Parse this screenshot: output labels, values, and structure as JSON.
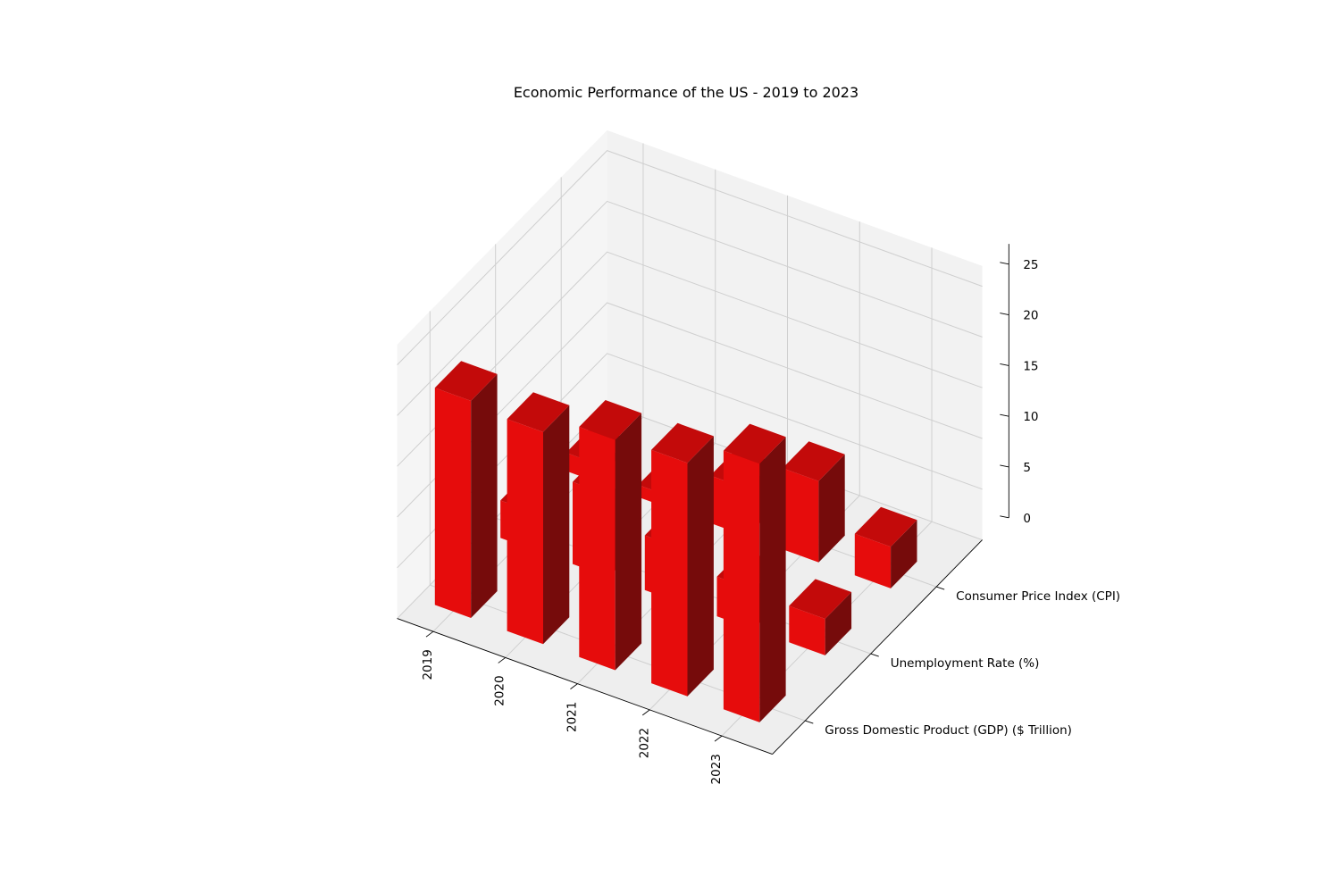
{
  "chart_data": {
    "type": "bar3d",
    "title": "Economic Performance of the US - 2019 to 2023",
    "categories": [
      "2019",
      "2020",
      "2021",
      "2022",
      "2023"
    ],
    "series": [
      {
        "name": "Gross Domestic Product (GDP) ($ Trillion)",
        "values": [
          21.4,
          20.9,
          22.7,
          23.0,
          25.5
        ]
      },
      {
        "name": "Unemployment Rate (%)",
        "values": [
          3.7,
          8.1,
          5.4,
          3.9,
          3.6
        ]
      },
      {
        "name": "Consumer Price Index (CPI)",
        "values": [
          1.8,
          1.2,
          4.7,
          8.0,
          4.1
        ]
      }
    ],
    "zticks": [
      0,
      5,
      10,
      15,
      20,
      25
    ],
    "zlim": [
      0,
      27
    ],
    "bar_color": "#ff0000",
    "grid": true
  }
}
